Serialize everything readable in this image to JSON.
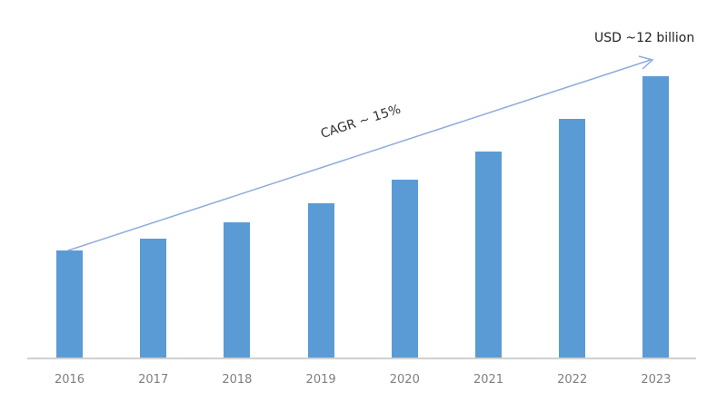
{
  "chart_data": {
    "type": "bar",
    "title": "",
    "xlabel": "",
    "ylabel": "",
    "categories": [
      "2016",
      "2017",
      "2018",
      "2019",
      "2020",
      "2021",
      "2022",
      "2023"
    ],
    "values": [
      4.6,
      5.1,
      5.8,
      6.6,
      7.6,
      8.8,
      10.2,
      12.0
    ],
    "units": "USD billion (estimated from bar heights, 2023 ≈ 12)",
    "ylim": [
      0,
      12.5
    ],
    "grid": false,
    "legend": null,
    "y_axis_visible": false,
    "bar_color": "#5b9bd5",
    "annotations": [
      {
        "text": "USD ~12 billion",
        "position": "above 2023 bar, at arrow head"
      },
      {
        "text": "CAGR ~ 15%",
        "position": "along trend arrow from 2016 to 2023"
      }
    ]
  },
  "labels": {
    "end_value": "USD ~12 billion",
    "cagr": "CAGR ~ 15%"
  },
  "colors": {
    "bar": "#5b9bd5",
    "axis": "#d0d0d0",
    "tick_text": "#7f7f7f",
    "arrow": "#8faadc"
  }
}
